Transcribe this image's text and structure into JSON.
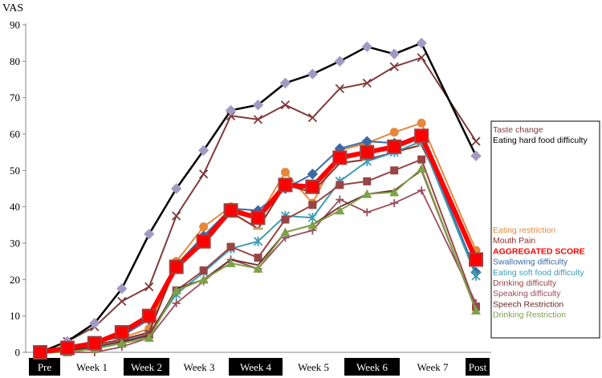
{
  "chart_data": {
    "type": "line",
    "ylabel": "VAS",
    "ylim": [
      0,
      90
    ],
    "yticks": [
      0,
      10,
      20,
      30,
      40,
      50,
      60,
      70,
      80,
      90
    ],
    "grid": false,
    "legend_placement": "right",
    "x_tick_labels": [
      {
        "label": "Pre",
        "dark": true
      },
      {
        "label": "Week 1",
        "dark": false
      },
      {
        "label": "Week 2",
        "dark": true
      },
      {
        "label": "Week 3",
        "dark": false
      },
      {
        "label": "Week 4",
        "dark": true
      },
      {
        "label": "Week 5",
        "dark": false
      },
      {
        "label": "Week 6",
        "dark": true
      },
      {
        "label": "Week 7",
        "dark": false
      },
      {
        "label": "Post",
        "dark": true
      }
    ],
    "x": [
      0,
      0.5,
      1,
      1.5,
      2,
      2.5,
      3,
      3.5,
      4,
      4.5,
      5,
      5.5,
      6,
      6.5,
      7,
      7.5,
      8
    ],
    "series": [
      {
        "name": "Taste change",
        "color": "#7f3b3b",
        "marker": "x",
        "width": 2,
        "values": [
          0,
          3,
          7,
          14,
          18,
          37.5,
          49,
          65,
          64,
          68,
          64.5,
          72.5,
          74,
          78.5,
          81,
          null,
          58
        ]
      },
      {
        "name": "Eating hard food difficulty",
        "color": "#000000",
        "marker": "diamond",
        "marker_color": "#a39ac4",
        "width": 2.5,
        "values": [
          0,
          3,
          8,
          17.5,
          32.5,
          45,
          55.5,
          66.5,
          68,
          74,
          76.5,
          80,
          84,
          82,
          85,
          null,
          54
        ]
      },
      {
        "name": "Eating restriction",
        "color": "#e5883d",
        "marker": "circle",
        "width": 2,
        "values": [
          0,
          1.5,
          3,
          4,
          6.5,
          25,
          34.5,
          40,
          37,
          49.5,
          41,
          55.5,
          57.5,
          60.5,
          63,
          null,
          28
        ]
      },
      {
        "name": "Mouth Pain",
        "color": "#8e2e25",
        "marker": "minus",
        "width": 2,
        "values": [
          0,
          1,
          2,
          3.5,
          5.5,
          24,
          29.5,
          38.5,
          34,
          46,
          44,
          52,
          53,
          55,
          57,
          null,
          26
        ]
      },
      {
        "name": "AGGREGATED SCORE",
        "color": "#ff0000",
        "marker": "square",
        "marker_color": "#ff0000",
        "marker_stroke": "#a04040",
        "width": 6,
        "values": [
          0,
          1.2,
          2.5,
          5.5,
          10,
          23.5,
          30.5,
          39,
          37,
          46,
          45.5,
          53.5,
          55,
          56.5,
          59.5,
          null,
          25.5
        ]
      },
      {
        "name": "Swallowing difficulty",
        "color": "#3b6aa6",
        "marker": "diamond",
        "marker_color": "#3b6aa6",
        "width": 2,
        "values": [
          0,
          1,
          2.5,
          4.5,
          9,
          24,
          32,
          39.5,
          39,
          45,
          49,
          56,
          58,
          57.5,
          59,
          null,
          22
        ]
      },
      {
        "name": "Eating soft food difficulty",
        "color": "#3d9cb4",
        "marker": "star",
        "width": 2,
        "values": [
          0,
          0.5,
          1,
          3,
          5,
          16,
          22,
          28.5,
          30.5,
          37.5,
          37,
          47,
          52.5,
          55,
          58,
          null,
          21
        ]
      },
      {
        "name": "Drinking difficulty",
        "color": "#984545",
        "marker": "square",
        "marker_color": "#984545",
        "width": 2,
        "values": [
          0,
          0.5,
          1,
          2.5,
          5,
          17,
          22.5,
          29,
          26,
          36.5,
          40.5,
          46,
          47,
          50,
          53,
          null,
          12.5
        ]
      },
      {
        "name": "Speaking difficulty",
        "color": "#9a4e5c",
        "marker": "plus",
        "width": 1.8,
        "values": [
          0,
          0,
          0,
          1.5,
          4,
          13.5,
          19.5,
          25.5,
          23,
          31.5,
          33.5,
          42,
          38.5,
          41,
          44.5,
          null,
          13.5
        ]
      },
      {
        "name": "Speech Restriction",
        "color": "#6b2a2a",
        "marker": "none",
        "width": 1.8,
        "values": [
          0,
          0.5,
          1.5,
          3,
          4.5,
          17.5,
          20,
          25.5,
          24,
          33,
          35,
          40,
          43.5,
          44.5,
          50,
          null,
          11.5
        ]
      },
      {
        "name": "Drinking Restriction",
        "color": "#7ea14a",
        "marker": "triangle",
        "marker_color": "#7ea14a",
        "width": 2,
        "values": [
          0,
          0,
          1,
          2.5,
          4,
          17,
          20,
          24.5,
          23,
          33,
          35,
          39,
          43.5,
          44,
          50.5,
          null,
          11.5
        ]
      }
    ],
    "legend_groups": [
      {
        "items": [
          "Taste change",
          "Eating hard food difficulty"
        ]
      },
      {
        "items": [
          "Eating restriction",
          "Mouth Pain",
          "AGGREGATED SCORE",
          "Swallowing difficulty",
          "Eating soft food difficulty",
          "Drinking difficulty",
          "Speaking difficulty",
          "Speech Restriction",
          "Drinking Restriction"
        ]
      }
    ]
  }
}
